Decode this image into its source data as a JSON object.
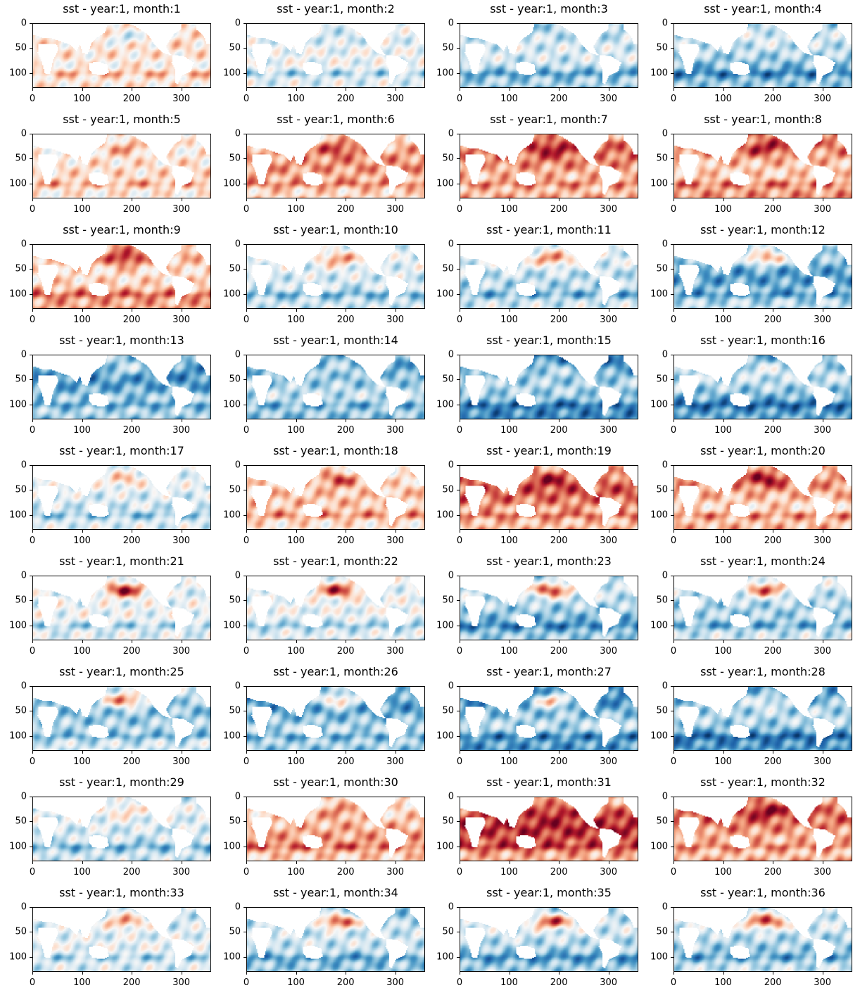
{
  "chart_data": {
    "type": "heatmap",
    "colormap": "RdBu_r",
    "layout": {
      "rows": 9,
      "cols": 4
    },
    "x_ticks": [
      0,
      100,
      200,
      300
    ],
    "y_ticks": [
      0,
      50,
      100
    ],
    "xlim": [
      0,
      360
    ],
    "ylim": [
      130,
      0
    ],
    "value_range": [
      -1,
      1
    ],
    "panels": [
      {
        "title": "sst - year:1, month:1",
        "mean_anomaly": 0.15,
        "north_pacific_anomaly": -0.2
      },
      {
        "title": "sst - year:1, month:2",
        "mean_anomaly": -0.1,
        "north_pacific_anomaly": -0.2
      },
      {
        "title": "sst - year:1, month:3",
        "mean_anomaly": -0.3,
        "north_pacific_anomaly": -0.3
      },
      {
        "title": "sst - year:1, month:4",
        "mean_anomaly": -0.4,
        "north_pacific_anomaly": -0.3
      },
      {
        "title": "sst - year:1, month:5",
        "mean_anomaly": 0.15,
        "north_pacific_anomaly": 0.5
      },
      {
        "title": "sst - year:1, month:6",
        "mean_anomaly": 0.4,
        "north_pacific_anomaly": 0.8
      },
      {
        "title": "sst - year:1, month:7",
        "mean_anomaly": 0.5,
        "north_pacific_anomaly": 0.85
      },
      {
        "title": "sst - year:1, month:8",
        "mean_anomaly": 0.45,
        "north_pacific_anomaly": 0.8
      },
      {
        "title": "sst - year:1, month:9",
        "mean_anomaly": 0.35,
        "north_pacific_anomaly": 0.9
      },
      {
        "title": "sst - year:1, month:10",
        "mean_anomaly": -0.2,
        "north_pacific_anomaly": 0.4
      },
      {
        "title": "sst - year:1, month:11",
        "mean_anomaly": -0.25,
        "north_pacific_anomaly": 0.4
      },
      {
        "title": "sst - year:1, month:12",
        "mean_anomaly": -0.5,
        "north_pacific_anomaly": 0.3
      },
      {
        "title": "sst - year:1, month:13",
        "mean_anomaly": -0.55,
        "north_pacific_anomaly": -0.2
      },
      {
        "title": "sst - year:1, month:14",
        "mean_anomaly": -0.45,
        "north_pacific_anomaly": -0.2
      },
      {
        "title": "sst - year:1, month:15",
        "mean_anomaly": -0.6,
        "north_pacific_anomaly": -0.3
      },
      {
        "title": "sst - year:1, month:16",
        "mean_anomaly": -0.5,
        "north_pacific_anomaly": -0.3
      },
      {
        "title": "sst - year:1, month:17",
        "mean_anomaly": -0.15,
        "north_pacific_anomaly": 0.2
      },
      {
        "title": "sst - year:1, month:18",
        "mean_anomaly": 0.25,
        "north_pacific_anomaly": 0.75
      },
      {
        "title": "sst - year:1, month:19",
        "mean_anomaly": 0.55,
        "north_pacific_anomaly": 0.85
      },
      {
        "title": "sst - year:1, month:20",
        "mean_anomaly": 0.4,
        "north_pacific_anomaly": 0.85
      },
      {
        "title": "sst - year:1, month:21",
        "mean_anomaly": -0.1,
        "north_pacific_anomaly": 0.85
      },
      {
        "title": "sst - year:1, month:22",
        "mean_anomaly": -0.1,
        "north_pacific_anomaly": 0.75
      },
      {
        "title": "sst - year:1, month:23",
        "mean_anomaly": -0.4,
        "north_pacific_anomaly": 0.5
      },
      {
        "title": "sst - year:1, month:24",
        "mean_anomaly": -0.3,
        "north_pacific_anomaly": 0.5
      },
      {
        "title": "sst - year:1, month:25",
        "mean_anomaly": -0.35,
        "north_pacific_anomaly": 0.5
      },
      {
        "title": "sst - year:1, month:26",
        "mean_anomaly": -0.5,
        "north_pacific_anomaly": 0.3
      },
      {
        "title": "sst - year:1, month:27",
        "mean_anomaly": -0.6,
        "north_pacific_anomaly": 0.3
      },
      {
        "title": "sst - year:1, month:28",
        "mean_anomaly": -0.55,
        "north_pacific_anomaly": -0.2
      },
      {
        "title": "sst - year:1, month:29",
        "mean_anomaly": -0.2,
        "north_pacific_anomaly": 0.1
      },
      {
        "title": "sst - year:1, month:30",
        "mean_anomaly": 0.35,
        "north_pacific_anomaly": 0.65
      },
      {
        "title": "sst - year:1, month:31",
        "mean_anomaly": 0.7,
        "north_pacific_anomaly": 0.9
      },
      {
        "title": "sst - year:1, month:32",
        "mean_anomaly": 0.5,
        "north_pacific_anomaly": 0.9
      },
      {
        "title": "sst - year:1, month:33",
        "mean_anomaly": -0.15,
        "north_pacific_anomaly": 0.45
      },
      {
        "title": "sst - year:1, month:34",
        "mean_anomaly": -0.35,
        "north_pacific_anomaly": 0.65
      },
      {
        "title": "sst - year:1, month:35",
        "mean_anomaly": -0.35,
        "north_pacific_anomaly": 0.55
      },
      {
        "title": "sst - year:1, month:36",
        "mean_anomaly": -0.3,
        "north_pacific_anomaly": 0.55
      }
    ]
  }
}
